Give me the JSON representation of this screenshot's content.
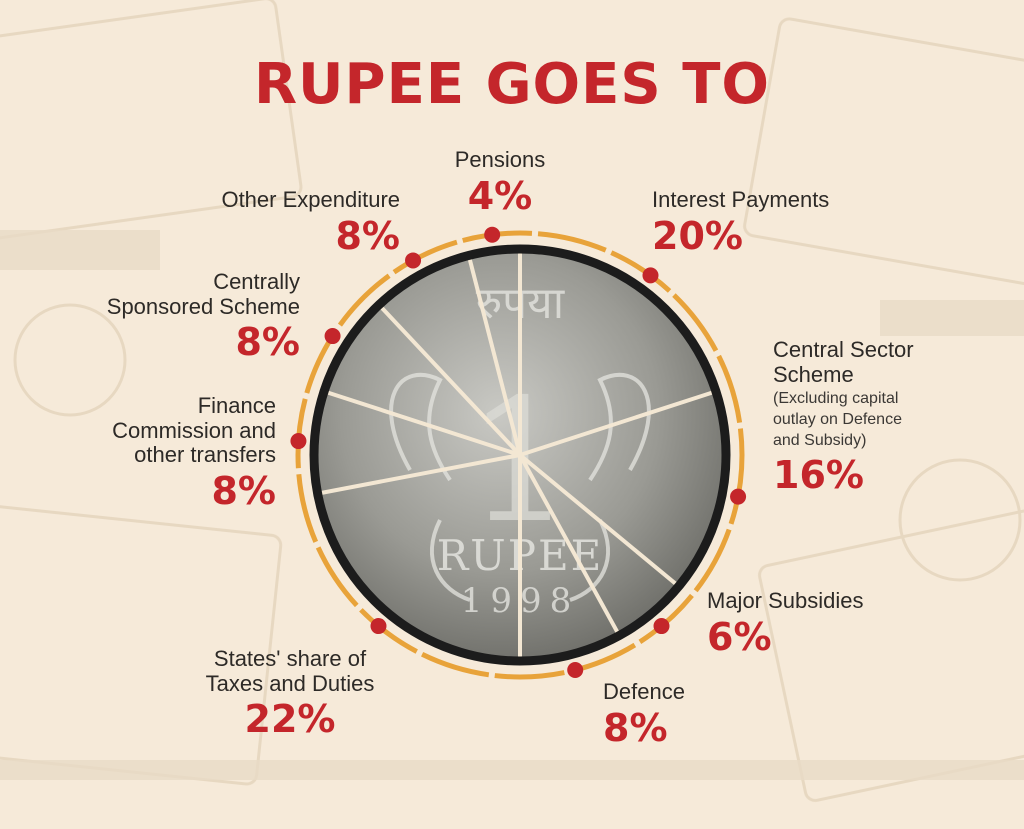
{
  "title": "RUPEE GOES TO",
  "colors": {
    "accent_red": "#c4262b",
    "ring_orange": "#e8a33a",
    "coin_border": "#1c1c1c",
    "divider": "#f3e7d3",
    "background": "#f6ead9"
  },
  "coin": {
    "hindi_text": "रुपया",
    "numeral": "1",
    "word": "RUPEE",
    "year": "1998"
  },
  "chart_data": {
    "type": "pie",
    "title": "RUPEE GOES TO",
    "unit": "%",
    "slices": [
      {
        "label": "Interest Payments",
        "value": 20
      },
      {
        "label": "Central Sector Scheme",
        "value": 16,
        "note": "(Excluding capital outlay on Defence and Subsidy)"
      },
      {
        "label": "Major Subsidies",
        "value": 6
      },
      {
        "label": "Defence",
        "value": 8
      },
      {
        "label": "States' share of Taxes and Duties",
        "value": 22
      },
      {
        "label": "Finance Commission and other transfers",
        "value": 8
      },
      {
        "label": "Centrally Sponsored Scheme",
        "value": 8
      },
      {
        "label": "Other Expenditure",
        "value": 8
      },
      {
        "label": "Pensions",
        "value": 4
      }
    ]
  },
  "labels": {
    "pensions": {
      "name": "Pensions",
      "pct": "4%"
    },
    "interest": {
      "name": "Interest Payments",
      "pct": "20%"
    },
    "central_sector": {
      "name1": "Central Sector",
      "name2": "Scheme",
      "note1": "(Excluding capital",
      "note2": "outlay on Defence",
      "note3": "and Subsidy)",
      "pct": "16%"
    },
    "subsidies": {
      "name": "Major Subsidies",
      "pct": "6%"
    },
    "defence": {
      "name": "Defence",
      "pct": "8%"
    },
    "states_share": {
      "name1": "States' share of",
      "name2": "Taxes and Duties",
      "pct": "22%"
    },
    "finance_commission": {
      "name1": "Finance",
      "name2": "Commission and",
      "name3": "other transfers",
      "pct": "8%"
    },
    "centrally_sponsored": {
      "name1": "Centrally",
      "name2": "Sponsored Scheme",
      "pct": "8%"
    },
    "other_expenditure": {
      "name": "Other Expenditure",
      "pct": "8%"
    }
  }
}
